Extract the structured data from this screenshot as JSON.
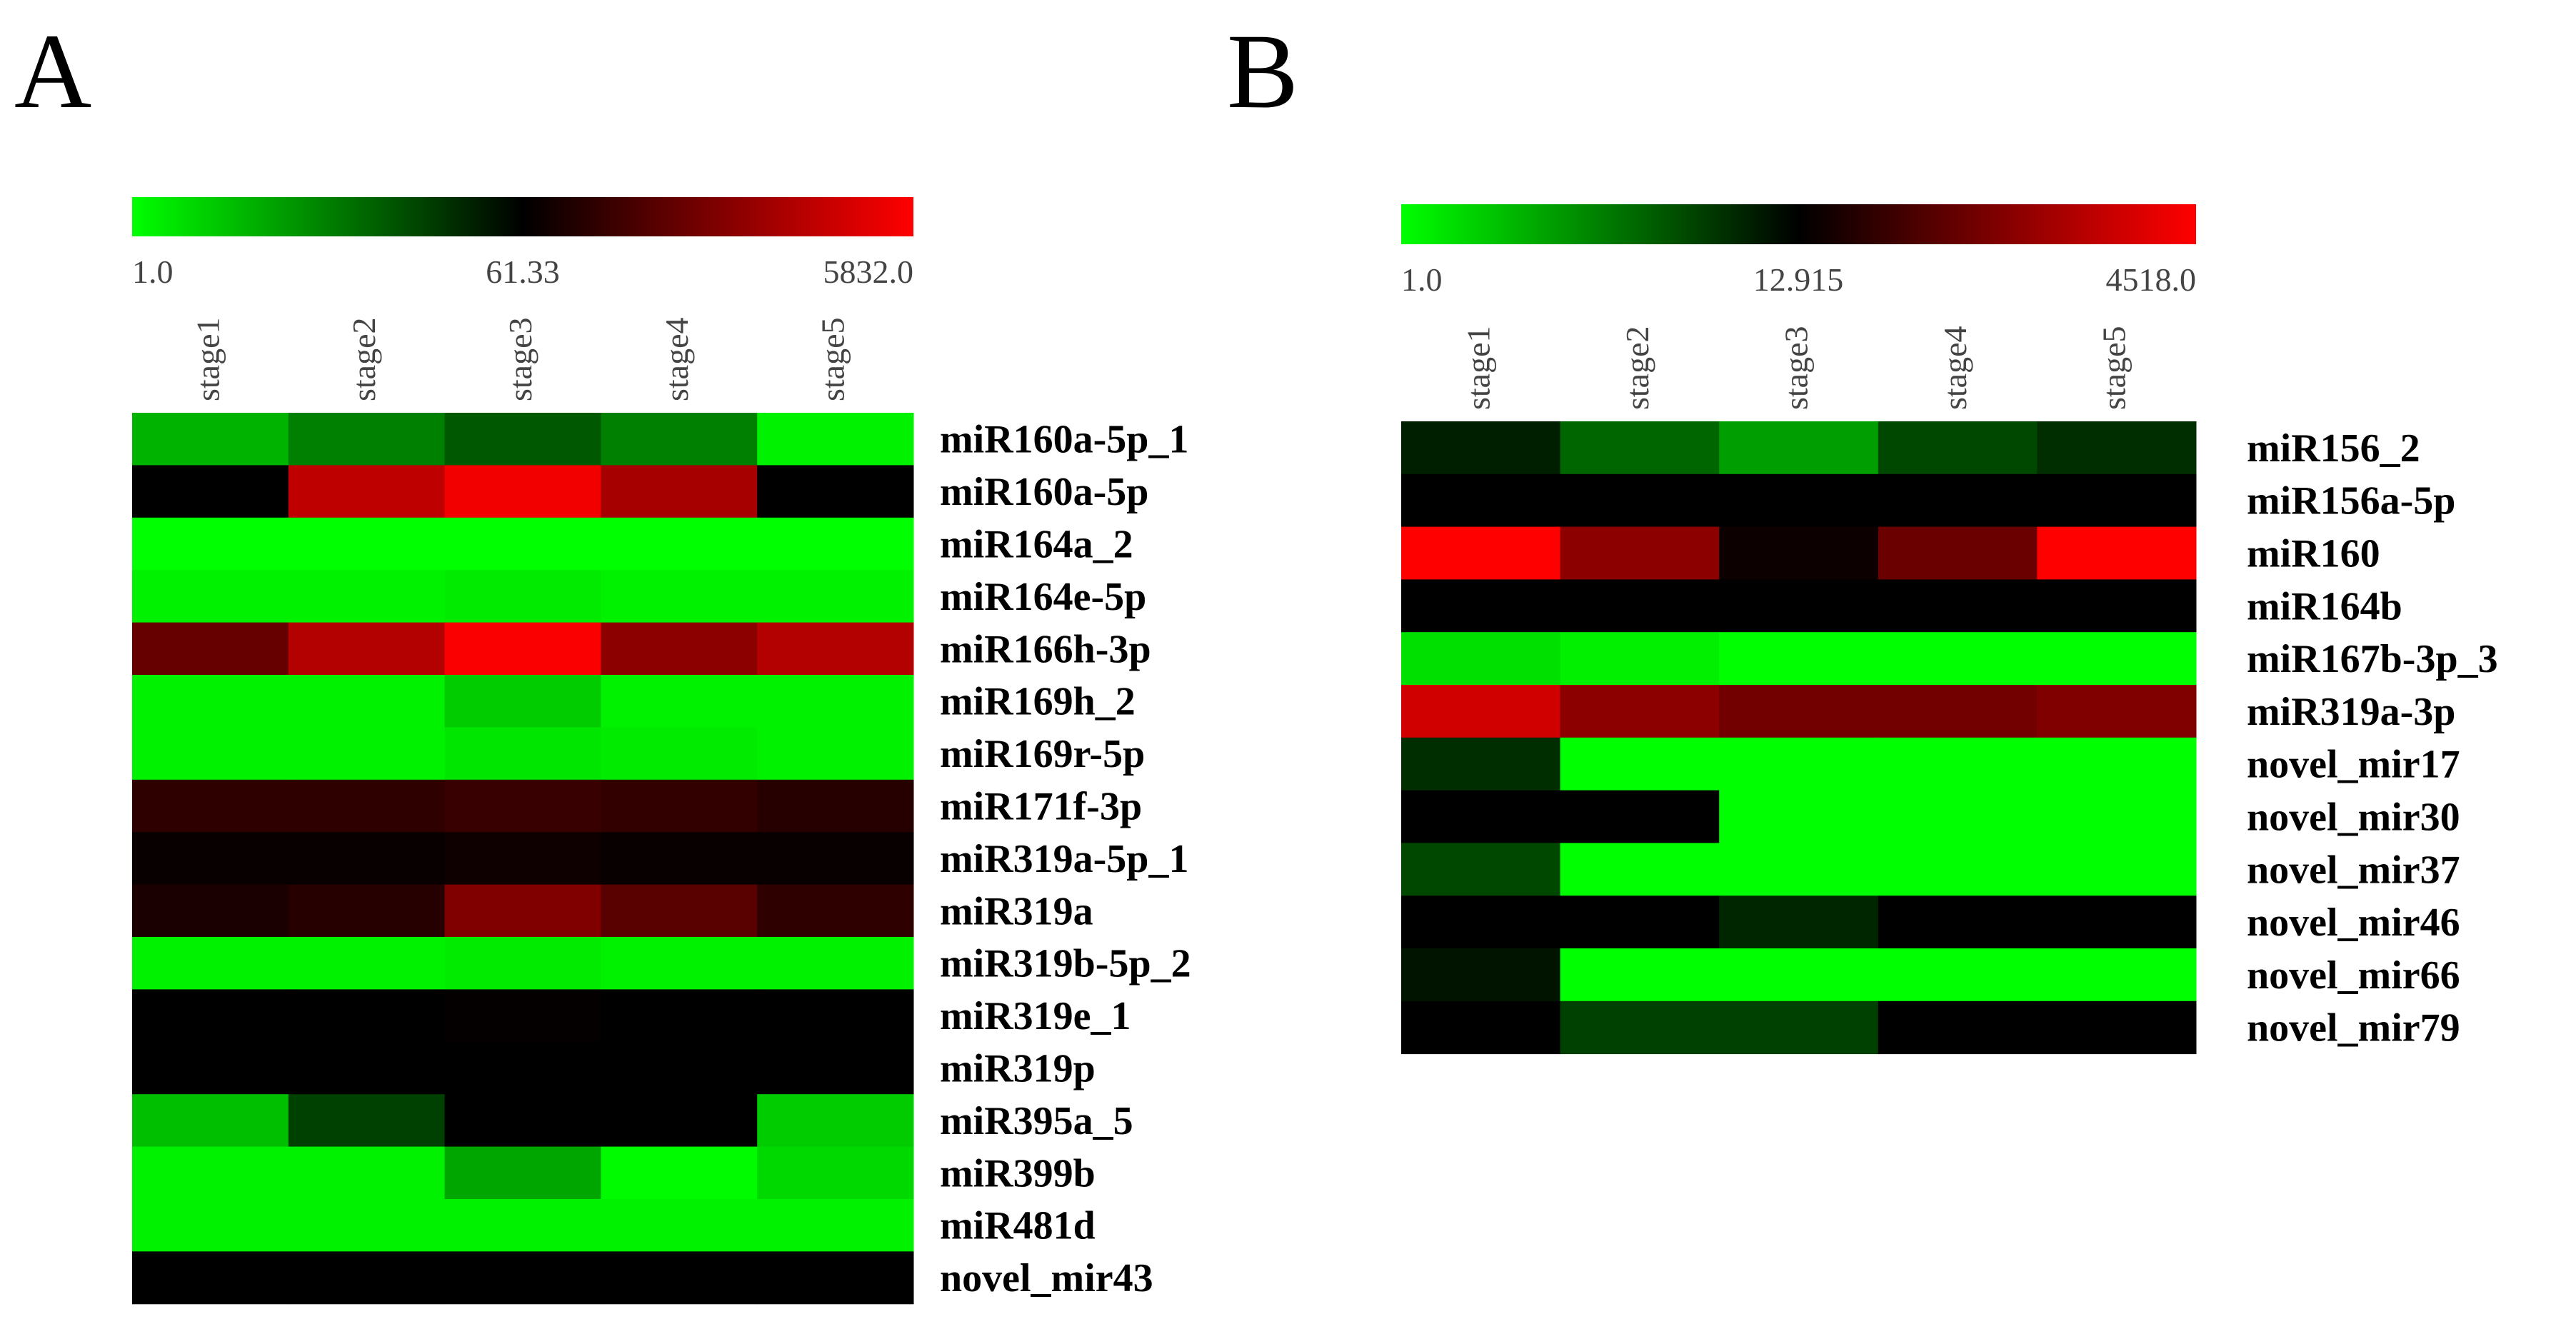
{
  "chart_data": [
    {
      "type": "heatmap",
      "panel_label": "A",
      "color_scale": {
        "low": 1.0,
        "mid": 61.33,
        "high": 5832.0,
        "low_label": "1.0",
        "mid_label": "61.33",
        "high_label": "5832.0",
        "colors": [
          "#00ff00",
          "#000000",
          "#ff0000"
        ]
      },
      "columns": [
        "stage1",
        "stage2",
        "stage3",
        "stage4",
        "stage5"
      ],
      "rows": [
        {
          "name": "miR160a-5p_1",
          "values": [
            -0.7,
            -0.5,
            -0.35,
            -0.5,
            -0.95
          ]
        },
        {
          "name": "miR160a-5p",
          "values": [
            0.0,
            0.75,
            0.95,
            0.65,
            0.0
          ]
        },
        {
          "name": "miR164a_2",
          "values": [
            -1.0,
            -1.0,
            -1.0,
            -1.0,
            -1.0
          ]
        },
        {
          "name": "miR164e-5p",
          "values": [
            -0.95,
            -0.95,
            -0.92,
            -0.95,
            -0.95
          ]
        },
        {
          "name": "miR166h-3p",
          "values": [
            0.4,
            0.7,
            0.98,
            0.55,
            0.7
          ]
        },
        {
          "name": "miR169h_2",
          "values": [
            -0.95,
            -0.95,
            -0.8,
            -0.95,
            -0.95
          ]
        },
        {
          "name": "miR169r-5p",
          "values": [
            -0.95,
            -0.95,
            -0.9,
            -0.92,
            -0.95
          ]
        },
        {
          "name": "miR171f-3p",
          "values": [
            0.18,
            0.18,
            0.22,
            0.2,
            0.15
          ]
        },
        {
          "name": "miR319a-5p_1",
          "values": [
            0.03,
            0.03,
            0.06,
            0.03,
            0.03
          ]
        },
        {
          "name": "miR319a",
          "values": [
            0.1,
            0.15,
            0.5,
            0.35,
            0.18
          ]
        },
        {
          "name": "miR319b-5p_2",
          "values": [
            -0.95,
            -0.95,
            -0.92,
            -0.95,
            -0.95
          ]
        },
        {
          "name": "miR319e_1",
          "values": [
            0.0,
            0.0,
            0.02,
            0.0,
            0.0
          ]
        },
        {
          "name": "miR319p",
          "values": [
            0.0,
            0.0,
            0.0,
            0.0,
            0.0
          ]
        },
        {
          "name": "miR395a_5",
          "values": [
            -0.75,
            -0.25,
            0.0,
            0.0,
            -0.8
          ]
        },
        {
          "name": "miR399b",
          "values": [
            -0.95,
            -0.95,
            -0.65,
            -0.98,
            -0.85
          ]
        },
        {
          "name": "miR481d",
          "values": [
            -0.95,
            -0.95,
            -0.95,
            -0.95,
            -0.95
          ]
        },
        {
          "name": "novel_mir43",
          "values": [
            0.0,
            0.0,
            0.0,
            0.0,
            0.0
          ]
        }
      ]
    },
    {
      "type": "heatmap",
      "panel_label": "B",
      "color_scale": {
        "low": 1.0,
        "mid": 12.915,
        "high": 4518.0,
        "low_label": "1.0",
        "mid_label": "12.915",
        "high_label": "4518.0",
        "colors": [
          "#00ff00",
          "#000000",
          "#ff0000"
        ]
      },
      "columns": [
        "stage1",
        "stage2",
        "stage3",
        "stage4",
        "stage5"
      ],
      "rows": [
        {
          "name": "miR156_2",
          "values": [
            -0.12,
            -0.4,
            -0.62,
            -0.28,
            -0.18
          ]
        },
        {
          "name": "miR156a-5p",
          "values": [
            0.0,
            0.0,
            0.0,
            0.0,
            0.0
          ]
        },
        {
          "name": "miR160",
          "values": [
            1.0,
            0.55,
            0.05,
            0.42,
            1.0
          ]
        },
        {
          "name": "miR164b",
          "values": [
            0.0,
            0.0,
            0.0,
            0.0,
            0.0
          ]
        },
        {
          "name": "miR167b-3p_3",
          "values": [
            -0.88,
            -0.94,
            -1.0,
            -1.0,
            -1.0
          ]
        },
        {
          "name": "miR319a-3p",
          "values": [
            0.82,
            0.55,
            0.45,
            0.45,
            0.5
          ]
        },
        {
          "name": "novel_mir17",
          "values": [
            -0.18,
            -1.0,
            -1.0,
            -1.0,
            -1.0
          ]
        },
        {
          "name": "novel_mir30",
          "values": [
            0.0,
            0.0,
            -1.0,
            -1.0,
            -1.0
          ]
        },
        {
          "name": "novel_mir37",
          "values": [
            -0.28,
            -1.0,
            -1.0,
            -1.0,
            -1.0
          ]
        },
        {
          "name": "novel_mir46",
          "values": [
            0.0,
            0.0,
            -0.15,
            0.0,
            0.0
          ]
        },
        {
          "name": "novel_mir66",
          "values": [
            -0.08,
            -1.0,
            -1.0,
            -1.0,
            -1.0
          ]
        },
        {
          "name": "novel_mir79",
          "values": [
            0.0,
            -0.25,
            -0.25,
            0.0,
            0.0
          ]
        }
      ]
    }
  ]
}
